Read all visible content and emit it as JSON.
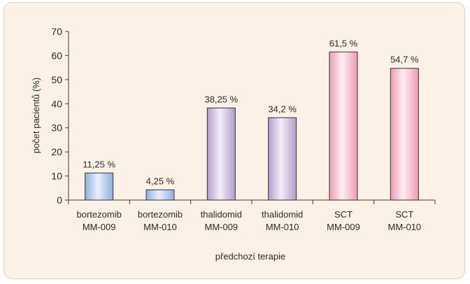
{
  "chart_data": {
    "type": "bar",
    "title": "",
    "xlabel": "předchozí terapie",
    "ylabel": "počet pacientů (%)",
    "ylim": [
      0,
      70
    ],
    "yticks": [
      0,
      10,
      20,
      30,
      40,
      50,
      60,
      70
    ],
    "grid": false,
    "categories": [
      [
        "bortezomib",
        "MM-009"
      ],
      [
        "bortezomib",
        "MM-010"
      ],
      [
        "thalidomid",
        "MM-009"
      ],
      [
        "thalidomid",
        "MM-010"
      ],
      [
        "SCT",
        "MM-009"
      ],
      [
        "SCT",
        "MM-010"
      ]
    ],
    "values": [
      11.25,
      4.25,
      38.25,
      34.2,
      61.5,
      54.7
    ],
    "data_labels": [
      "11,25 %",
      "4,25 %",
      "38,25 %",
      "34,2 %",
      "61,5 %",
      "54,7 %"
    ],
    "group_colors": {
      "bortezomib": {
        "light": "#e8f0fa",
        "dark": "#8fb0de"
      },
      "thalidomid": {
        "light": "#f3eef8",
        "dark": "#b59ccc"
      },
      "SCT": {
        "light": "#fdeef3",
        "dark": "#ee9ab5"
      }
    }
  }
}
